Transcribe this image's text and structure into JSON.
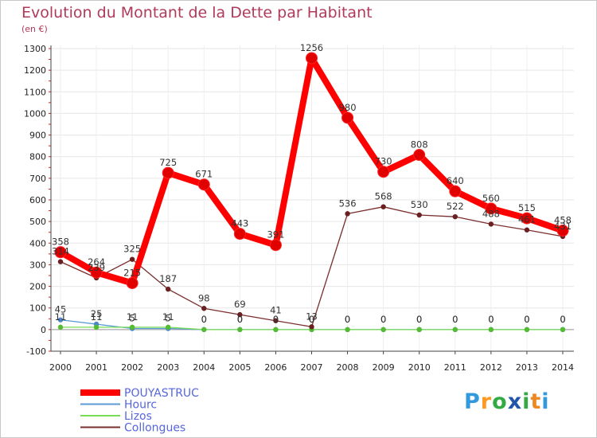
{
  "chart_data": {
    "type": "line",
    "title": "Evolution du Montant de la Dette par Habitant",
    "subtitle": "(en €)",
    "xlabel": "",
    "ylabel": "",
    "ylim": [
      -100,
      1300
    ],
    "y_ticks": [
      -100,
      0,
      100,
      200,
      300,
      400,
      500,
      600,
      700,
      800,
      900,
      1000,
      1100,
      1200,
      1300
    ],
    "x": [
      2000,
      2001,
      2002,
      2003,
      2004,
      2005,
      2006,
      2007,
      2008,
      2009,
      2010,
      2011,
      2012,
      2013,
      2014
    ],
    "series": [
      {
        "name": "POUYASTRUC",
        "color": "#ff0000",
        "marker": "#e00000",
        "values": [
          358,
          264,
          215,
          725,
          671,
          443,
          391,
          1256,
          980,
          730,
          808,
          640,
          560,
          515,
          458
        ]
      },
      {
        "name": "Hourc",
        "color": "#5b9bd5",
        "marker": "#4a86c8",
        "values": [
          45,
          25,
          5,
          5,
          0,
          0,
          0,
          0,
          0,
          0,
          0,
          0,
          0,
          0,
          0
        ]
      },
      {
        "name": "Lizos",
        "color": "#77dd55",
        "marker": "#55bb33",
        "values": [
          11,
          11,
          11,
          11,
          0,
          0,
          0,
          0,
          0,
          0,
          0,
          0,
          0,
          0,
          0
        ]
      },
      {
        "name": "Collongues",
        "color": "#7a2e2e",
        "marker": "#6a2020",
        "values": [
          314,
          239,
          325,
          187,
          98,
          69,
          41,
          13,
          536,
          568,
          530,
          522,
          488,
          461,
          431
        ]
      }
    ]
  },
  "brand": {
    "letters": [
      "P",
      "r",
      "o",
      "x",
      "i",
      "t",
      "i"
    ],
    "colors": [
      "#3399dd",
      "#ff9922",
      "#33aa44",
      "#2255aa",
      "#33aa44",
      "#ee8822",
      "#3399dd"
    ]
  }
}
